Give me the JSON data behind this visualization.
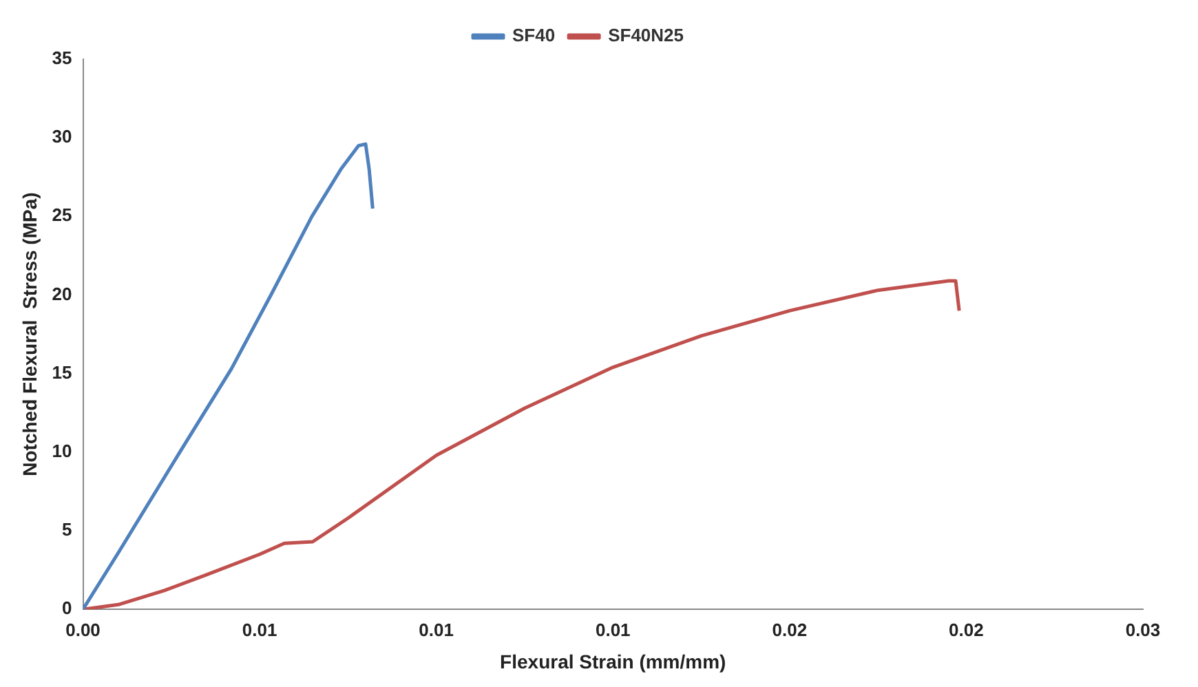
{
  "chart_data": {
    "type": "line",
    "xlabel": "Flexural Strain (mm/mm)",
    "ylabel": "Notched Flexural  Stress (MPa)",
    "xlim": [
      0,
      0.03
    ],
    "xticks": [
      {
        "value": 0,
        "label": "0.00"
      },
      {
        "value": 0.005,
        "label": "0.01"
      },
      {
        "value": 0.01,
        "label": "0.01"
      },
      {
        "value": 0.015,
        "label": "0.01"
      },
      {
        "value": 0.02,
        "label": "0.02"
      },
      {
        "value": 0.025,
        "label": "0.02"
      },
      {
        "value": 0.03,
        "label": "0.03"
      }
    ],
    "ylim": [
      0,
      35
    ],
    "yticks": [
      0,
      5,
      10,
      15,
      20,
      25,
      30,
      35
    ],
    "grid": false,
    "legend": "top",
    "marker": "none",
    "line_style": "solid",
    "series": [
      {
        "name": "SF40",
        "color": "#4f81bd",
        "x": [
          0,
          0.001,
          0.00274,
          0.0042,
          0.00532,
          0.00648,
          0.0073,
          0.0078,
          0.008,
          0.0081,
          0.0082
        ],
        "values": [
          0,
          3.6,
          10,
          15.3,
          20,
          25,
          28,
          29.5,
          29.6,
          28,
          25.5
        ]
      },
      {
        "name": "SF40N25",
        "color": "#c0504d",
        "x": [
          0,
          0.001,
          0.0023,
          0.0035,
          0.005,
          0.0057,
          0.0065,
          0.0075,
          0.01,
          0.0125,
          0.015,
          0.0175,
          0.02,
          0.0225,
          0.0245,
          0.0247,
          0.0248
        ],
        "values": [
          0,
          0.3,
          1.2,
          2.2,
          3.5,
          4.2,
          4.3,
          5.8,
          9.8,
          12.8,
          15.4,
          17.4,
          19.0,
          20.3,
          20.9,
          20.9,
          19.0
        ]
      }
    ]
  }
}
